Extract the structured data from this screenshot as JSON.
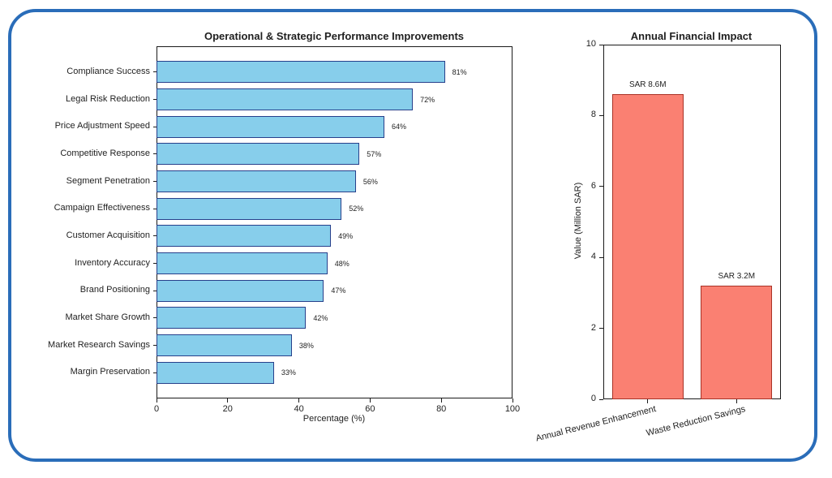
{
  "canvas": {
    "border_color": "#2a6db9",
    "background_color": "#ffffff"
  },
  "chart_data": [
    {
      "type": "bar",
      "orientation": "horizontal",
      "title": "Operational & Strategic Performance Improvements",
      "categories": [
        "Compliance Success",
        "Legal Risk Reduction",
        "Price Adjustment Speed",
        "Competitive Response",
        "Segment Penetration",
        "Campaign Effectiveness",
        "Customer Acquisition",
        "Inventory Accuracy",
        "Brand Positioning",
        "Market Share Growth",
        "Market Research Savings",
        "Margin Preservation"
      ],
      "values": [
        81,
        72,
        64,
        57,
        56,
        52,
        49,
        48,
        47,
        42,
        38,
        33
      ],
      "value_labels": [
        "81%",
        "72%",
        "64%",
        "57%",
        "56%",
        "52%",
        "49%",
        "48%",
        "47%",
        "42%",
        "38%",
        "33%"
      ],
      "xlabel": "Percentage (%)",
      "xlim": [
        0,
        100
      ],
      "xticks": [
        0,
        20,
        40,
        60,
        80,
        100
      ],
      "bar_color": "#87CEEB",
      "edge_color": "#27408b",
      "grid": false,
      "legend": "none"
    },
    {
      "type": "bar",
      "orientation": "vertical",
      "title": "Annual Financial Impact",
      "categories": [
        "Annual Revenue Enhancement",
        "Waste Reduction Savings"
      ],
      "values": [
        8.6,
        3.2
      ],
      "value_labels": [
        "SAR 8.6M",
        "SAR 3.2M"
      ],
      "ylabel": "Value (Million SAR)",
      "ylim": [
        0,
        10
      ],
      "yticks": [
        0,
        2,
        4,
        6,
        8,
        10
      ],
      "tick_rotation_deg": -14,
      "bar_color": "#FA8072",
      "edge_color": "#a93226",
      "grid": false,
      "legend": "none"
    }
  ]
}
